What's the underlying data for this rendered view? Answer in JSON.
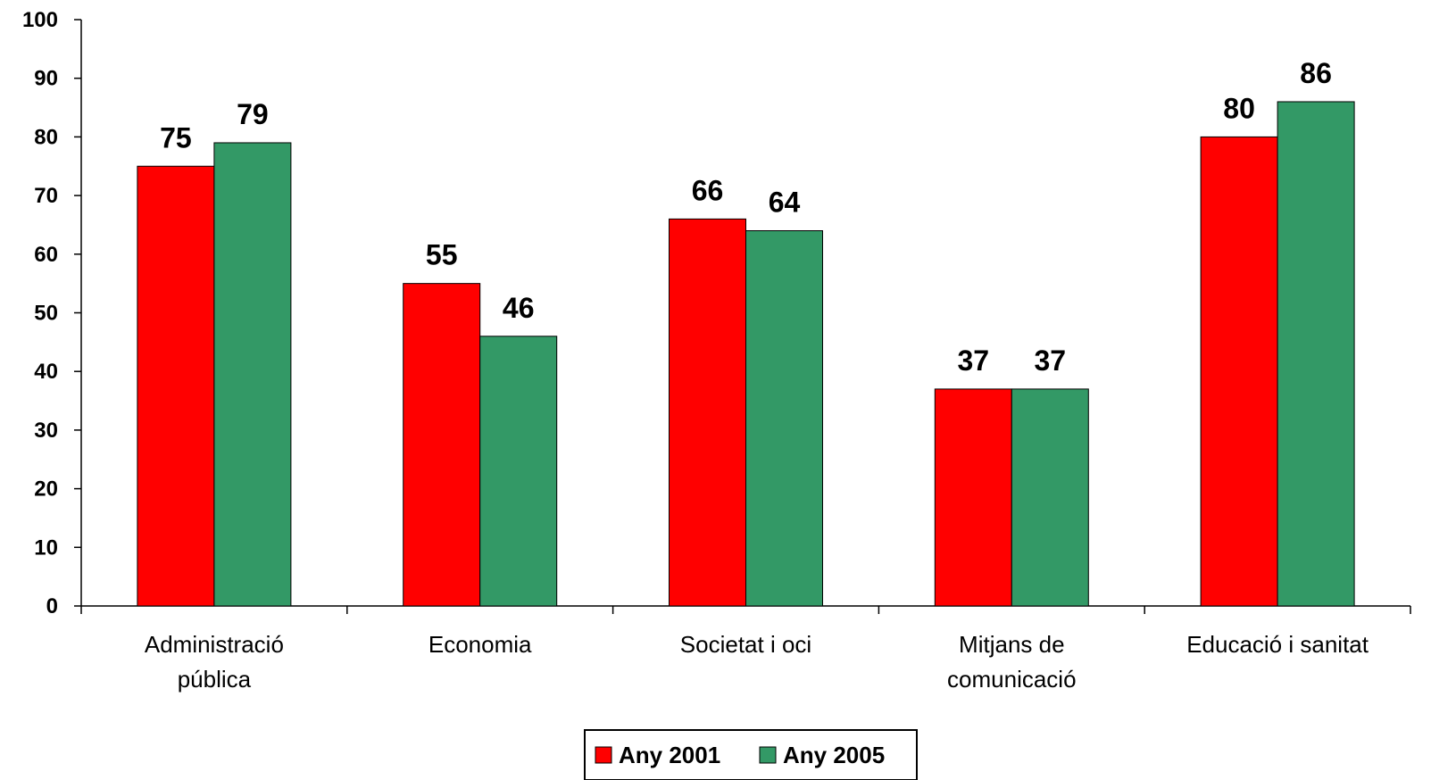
{
  "chart_data": {
    "type": "bar",
    "categories": [
      [
        "Administració",
        "pública"
      ],
      [
        "Economia"
      ],
      [
        "Societat i oci"
      ],
      [
        "Mitjans de",
        "comunicació"
      ],
      [
        "Educació i sanitat"
      ]
    ],
    "series": [
      {
        "name": "Any 2001",
        "color": "#ff0000",
        "values": [
          75,
          55,
          66,
          37,
          80
        ]
      },
      {
        "name": "Any 2005",
        "color": "#339966",
        "values": [
          79,
          46,
          64,
          37,
          86
        ]
      }
    ],
    "ylim": [
      0,
      100
    ],
    "yticks": [
      0,
      10,
      20,
      30,
      40,
      50,
      60,
      70,
      80,
      90,
      100
    ],
    "title": "",
    "xlabel": "",
    "ylabel": "",
    "grid": false,
    "legend_position": "bottom-center",
    "data_labels": true
  }
}
